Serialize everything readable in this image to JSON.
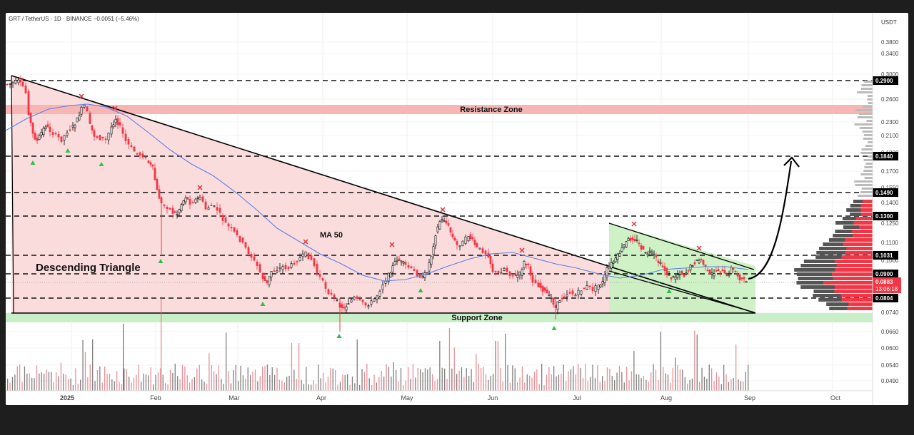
{
  "header": {
    "symbol": "GRT / TetherUS · 1D · BINANCE",
    "change": "−0.0051 (−5.46%)"
  },
  "axis": {
    "currency": "USDT",
    "price_labels": [
      "0.3800",
      "0.3400",
      "0.3000",
      "0.2600",
      "0.2300",
      "0.2100",
      "0.1800",
      "0.1700",
      "0.1550",
      "0.1400",
      "0.1250",
      "0.1100",
      "0.1000",
      "0.0740",
      "0.0660",
      "0.0600",
      "0.0540",
      "0.0490"
    ],
    "time_labels": [
      "2025",
      "Feb",
      "Mar",
      "Apr",
      "May",
      "Jun",
      "Jul",
      "Aug",
      "Sep",
      "Oct"
    ]
  },
  "levels": [
    {
      "label": "0.2900",
      "color": "#000000"
    },
    {
      "label": "0.1840",
      "color": "#000000"
    },
    {
      "label": "0.1490",
      "color": "#000000"
    },
    {
      "label": "0.1300",
      "color": "#000000"
    },
    {
      "label": "0.1031",
      "color": "#000000"
    },
    {
      "label": "0.0900",
      "color": "#000000"
    },
    {
      "label": "0.0804",
      "color": "#000000"
    }
  ],
  "current_price": {
    "value": "0.0883",
    "countdown": "13:06:18",
    "color": "#f23645"
  },
  "zones": {
    "resistance": {
      "label": "Resistance Zone",
      "color": "#f7b6b6"
    },
    "support": {
      "label": "Support Zone",
      "color": "#c8efc8"
    }
  },
  "annotations": {
    "pattern": "Descending Triangle",
    "ma": "MA 50"
  },
  "colors": {
    "up": "#000000",
    "down": "#f23645",
    "ma": "#5b7fe6",
    "triangle_fill": "#fbdcdc",
    "wedge_fill": "#c9f1c0"
  },
  "chart_data": {
    "type": "candlestick",
    "symbol": "GRT/USDT",
    "interval": "1D",
    "x_range": [
      "2024-12",
      "2025-10"
    ],
    "y_range": [
      0.049,
      0.38
    ],
    "candles_approx": [
      {
        "date": "2024-12-15",
        "close": 0.283
      },
      {
        "date": "2025-01-01",
        "close": 0.216
      },
      {
        "date": "2025-01-15",
        "close": 0.24
      },
      {
        "date": "2025-02-01",
        "close": 0.19
      },
      {
        "date": "2025-02-15",
        "close": 0.14
      },
      {
        "date": "2025-03-01",
        "close": 0.126
      },
      {
        "date": "2025-03-15",
        "close": 0.088
      },
      {
        "date": "2025-04-01",
        "close": 0.098
      },
      {
        "date": "2025-04-10",
        "close": 0.073
      },
      {
        "date": "2025-04-25",
        "close": 0.078
      },
      {
        "date": "2025-05-15",
        "close": 0.127
      },
      {
        "date": "2025-06-01",
        "close": 0.106
      },
      {
        "date": "2025-06-22",
        "close": 0.074
      },
      {
        "date": "2025-07-10",
        "close": 0.092
      },
      {
        "date": "2025-07-20",
        "close": 0.115
      },
      {
        "date": "2025-08-01",
        "close": 0.089
      },
      {
        "date": "2025-08-15",
        "close": 0.095
      },
      {
        "date": "2025-08-31",
        "close": 0.0883
      }
    ],
    "horizontal_levels": [
      0.29,
      0.184,
      0.149,
      0.13,
      0.1031,
      0.09,
      0.0804
    ],
    "annotations": [
      "Descending Triangle",
      "MA 50",
      "Resistance Zone",
      "Support Zone"
    ]
  }
}
